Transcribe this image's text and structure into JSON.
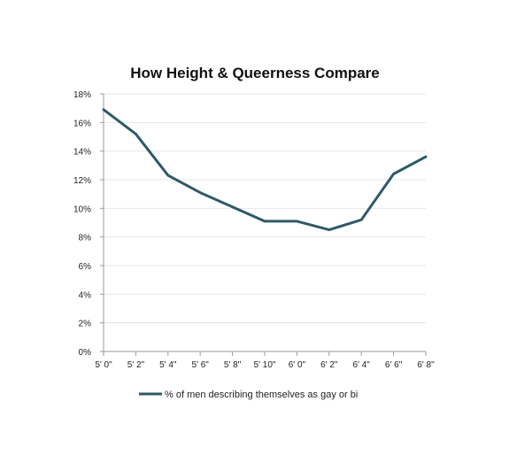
{
  "chart_data": {
    "type": "line",
    "title": "How Height & Queerness Compare",
    "xlabel": "",
    "ylabel": "",
    "categories": [
      "5' 0\"",
      "5' 2\"",
      "5' 4\"",
      "5' 6\"",
      "5' 8\"",
      "5' 10\"",
      "6' 0\"",
      "6' 2\"",
      "6' 4\"",
      "6' 6\"",
      "6' 8\""
    ],
    "series": [
      {
        "name": "% of men describing themselves as gay or bi",
        "values": [
          16.9,
          15.2,
          12.3,
          11.1,
          10.1,
          9.1,
          9.1,
          8.5,
          9.2,
          12.4,
          13.6
        ],
        "color": "#2e5a66"
      }
    ],
    "ylim": [
      0,
      18
    ],
    "yticks": [
      "0%",
      "2%",
      "4%",
      "6%",
      "8%",
      "10%",
      "12%",
      "14%",
      "16%",
      "18%"
    ],
    "grid": true,
    "legend_position": "bottom"
  }
}
